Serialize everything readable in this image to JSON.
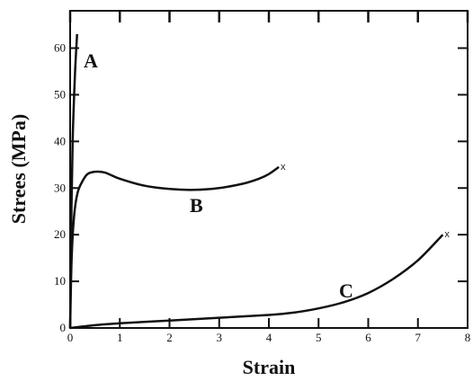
{
  "chart_data": {
    "type": "line",
    "title": "",
    "xlabel": "Strain",
    "ylabel": "Strees (MPa)",
    "xlim": [
      0,
      8
    ],
    "ylim": [
      0,
      68
    ],
    "xticks": [
      0,
      1,
      2,
      3,
      4,
      5,
      6,
      7,
      8
    ],
    "yticks": [
      0,
      10,
      20,
      30,
      40,
      50,
      60
    ],
    "grid": false,
    "legend": "none",
    "series": [
      {
        "name": "A",
        "end_marker": "",
        "x": [
          0,
          0.02,
          0.05,
          0.1,
          0.14
        ],
        "y": [
          0,
          20,
          40,
          55,
          63
        ]
      },
      {
        "name": "B",
        "end_marker": "x",
        "x": [
          0,
          0.03,
          0.08,
          0.15,
          0.25,
          0.35,
          0.5,
          0.7,
          1.0,
          1.5,
          2.0,
          2.5,
          3.0,
          3.5,
          3.8,
          4.0,
          4.2
        ],
        "y": [
          0,
          15,
          24,
          29,
          31.5,
          33,
          33.5,
          33.3,
          32,
          30.5,
          29.8,
          29.6,
          30,
          31,
          32,
          33,
          34.5
        ]
      },
      {
        "name": "C",
        "end_marker": "x",
        "x": [
          0,
          0.5,
          1.0,
          2.0,
          3.0,
          4.0,
          4.5,
          5.0,
          5.5,
          6.0,
          6.5,
          7.0,
          7.5
        ],
        "y": [
          0,
          0.6,
          1.0,
          1.6,
          2.2,
          2.8,
          3.3,
          4.2,
          5.5,
          7.5,
          10.5,
          14.5,
          20
        ]
      }
    ],
    "annotations": [
      "A",
      "B",
      "C"
    ]
  }
}
